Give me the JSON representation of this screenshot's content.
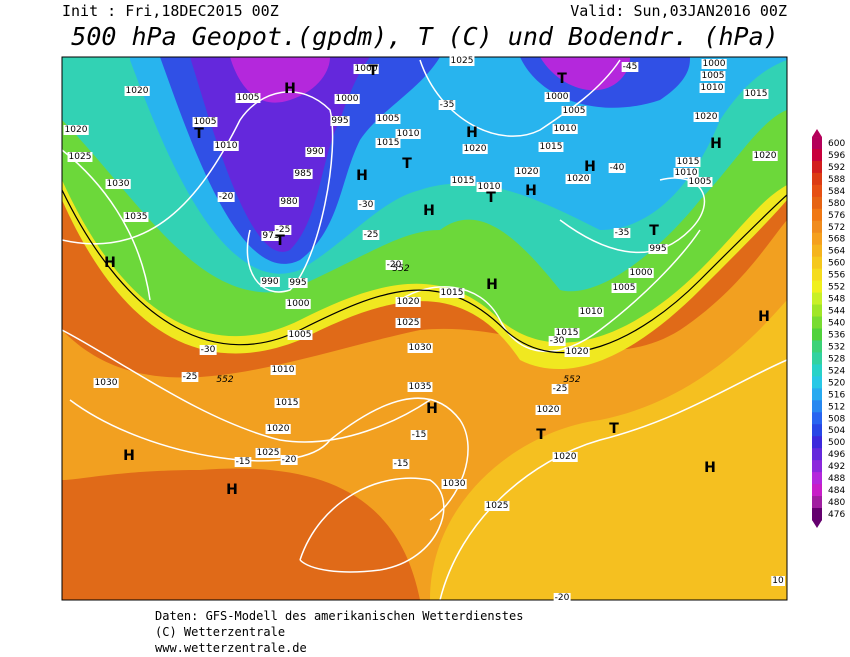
{
  "header": {
    "init": "Init : Fri,18DEC2015 00Z",
    "valid": "Valid: Sun,03JAN2016 00Z",
    "title": "500 hPa Geopot.(gpdm), T (C) und Bodendr. (hPa)"
  },
  "map_labels": [
    "1020",
    "1005",
    "1005",
    "1010",
    "1020",
    "1025",
    "1030",
    "1035",
    "990",
    "985",
    "980",
    "975",
    "990",
    "995",
    "1000",
    "1005",
    "1010",
    "1015",
    "1020",
    "1025",
    "1030",
    "1035",
    "1030",
    "1025",
    "1020",
    "1025",
    "1030",
    "1015",
    "1000",
    "995",
    "1005",
    "1010",
    "1015",
    "1020",
    "1015",
    "1010",
    "1025",
    "1020",
    "1015",
    "1010",
    "1005",
    "1000",
    "1020",
    "1015",
    "1010",
    "1005",
    "995",
    "1000",
    "1005",
    "1010",
    "1015",
    "1020",
    "1020",
    "1020",
    "1015",
    "1020",
    "1020",
    "1000",
    "1005",
    "1010",
    "1000",
    "10"
  ],
  "temp_labels": [
    "-35",
    "-30",
    "-25",
    "-20",
    "-30",
    "-25",
    "-20",
    "-15",
    "-15",
    "-20",
    "-15",
    "-35",
    "-40",
    "-45",
    "-30",
    "-25",
    "-20",
    "-25"
  ],
  "height_labels": [
    "552",
    "552",
    "552"
  ],
  "centers": [
    "H",
    "T",
    "T",
    "H",
    "T",
    "H",
    "T",
    "H",
    "H",
    "T",
    "H",
    "T",
    "H",
    "H",
    "T",
    "H",
    "H",
    "H",
    "T",
    "T",
    "H",
    "H",
    "H"
  ],
  "colorbar": {
    "levels": [
      600,
      596,
      592,
      588,
      584,
      580,
      576,
      572,
      568,
      564,
      560,
      556,
      552,
      548,
      544,
      540,
      536,
      532,
      528,
      524,
      520,
      516,
      512,
      508,
      504,
      500,
      496,
      492,
      488,
      484,
      480,
      476
    ],
    "colors": [
      "#b4005a",
      "#c8003c",
      "#d21e1e",
      "#dc3c14",
      "#e65014",
      "#e66414",
      "#f07814",
      "#f08c1e",
      "#f5a01e",
      "#f5b41e",
      "#f5c81e",
      "#f5dc1e",
      "#f0f01e",
      "#c8f028",
      "#a0e628",
      "#78dc32",
      "#50d23c",
      "#3cd278",
      "#32d2a0",
      "#28d2c8",
      "#28c8e6",
      "#28aaf0",
      "#2888f0",
      "#2864f0",
      "#2846e6",
      "#3c28dc",
      "#6428dc",
      "#8c28dc",
      "#b428dc",
      "#c81ec8",
      "#a01ea0",
      "#64006e"
    ]
  },
  "footer": [
    "Daten: GFS-Modell des amerikanischen Wetterdienstes",
    "(C) Wetterzentrale",
    "www.wetterzentrale.de"
  ]
}
